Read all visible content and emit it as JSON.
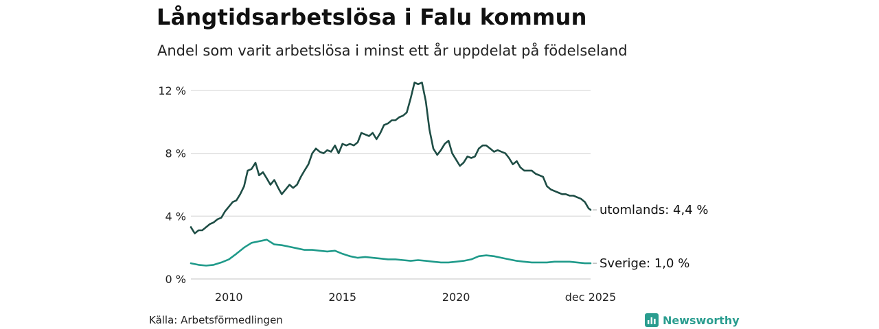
{
  "header": {
    "title": "Långtidsarbetslösa i Falu kommun",
    "subtitle": "Andel som varit arbetslösa i minst ett år uppdelat på födelseland"
  },
  "footer": {
    "source": "Källa: Arbetsförmedlingen",
    "brand": "Newsworthy",
    "brand_icon": "bar-chart-logo-icon",
    "brand_color": "#2a9d8f"
  },
  "chart_data": {
    "type": "line",
    "x_axis": {
      "min": 2008.33,
      "max": 2025.92,
      "ticks": [
        {
          "value": 2010,
          "label": "2010"
        },
        {
          "value": 2015,
          "label": "2015"
        },
        {
          "value": 2020,
          "label": "2020"
        },
        {
          "value": 2025.92,
          "label": "dec 2025"
        }
      ]
    },
    "y_axis": {
      "min": 0,
      "max": 12,
      "ticks": [
        {
          "value": 0,
          "label": "0 %"
        },
        {
          "value": 4,
          "label": "4 %"
        },
        {
          "value": 8,
          "label": "8 %"
        },
        {
          "value": 12,
          "label": "12 %"
        }
      ]
    },
    "grid": true,
    "series": [
      {
        "name": "utomlands",
        "label": "utomlands: 4,4 %",
        "color": "#1e4d45",
        "points": [
          [
            2008.33,
            3.3
          ],
          [
            2008.5,
            2.9
          ],
          [
            2008.67,
            3.1
          ],
          [
            2008.83,
            3.1
          ],
          [
            2009.0,
            3.3
          ],
          [
            2009.17,
            3.5
          ],
          [
            2009.33,
            3.6
          ],
          [
            2009.5,
            3.8
          ],
          [
            2009.67,
            3.9
          ],
          [
            2009.83,
            4.3
          ],
          [
            2010.0,
            4.6
          ],
          [
            2010.17,
            4.9
          ],
          [
            2010.33,
            5.0
          ],
          [
            2010.5,
            5.4
          ],
          [
            2010.67,
            5.9
          ],
          [
            2010.83,
            6.9
          ],
          [
            2011.0,
            7.0
          ],
          [
            2011.17,
            7.4
          ],
          [
            2011.33,
            6.6
          ],
          [
            2011.5,
            6.8
          ],
          [
            2011.67,
            6.4
          ],
          [
            2011.83,
            6.0
          ],
          [
            2012.0,
            6.3
          ],
          [
            2012.17,
            5.8
          ],
          [
            2012.33,
            5.4
          ],
          [
            2012.5,
            5.7
          ],
          [
            2012.67,
            6.0
          ],
          [
            2012.83,
            5.8
          ],
          [
            2013.0,
            6.0
          ],
          [
            2013.17,
            6.5
          ],
          [
            2013.33,
            6.9
          ],
          [
            2013.5,
            7.3
          ],
          [
            2013.67,
            8.0
          ],
          [
            2013.83,
            8.3
          ],
          [
            2014.0,
            8.1
          ],
          [
            2014.17,
            8.0
          ],
          [
            2014.33,
            8.2
          ],
          [
            2014.5,
            8.1
          ],
          [
            2014.67,
            8.5
          ],
          [
            2014.83,
            8.0
          ],
          [
            2015.0,
            8.6
          ],
          [
            2015.17,
            8.5
          ],
          [
            2015.33,
            8.6
          ],
          [
            2015.5,
            8.5
          ],
          [
            2015.67,
            8.7
          ],
          [
            2015.83,
            9.3
          ],
          [
            2016.0,
            9.2
          ],
          [
            2016.17,
            9.1
          ],
          [
            2016.33,
            9.3
          ],
          [
            2016.5,
            8.9
          ],
          [
            2016.67,
            9.3
          ],
          [
            2016.83,
            9.8
          ],
          [
            2017.0,
            9.9
          ],
          [
            2017.17,
            10.1
          ],
          [
            2017.33,
            10.1
          ],
          [
            2017.5,
            10.3
          ],
          [
            2017.67,
            10.4
          ],
          [
            2017.83,
            10.6
          ],
          [
            2018.0,
            11.5
          ],
          [
            2018.17,
            12.5
          ],
          [
            2018.33,
            12.4
          ],
          [
            2018.5,
            12.5
          ],
          [
            2018.67,
            11.3
          ],
          [
            2018.83,
            9.5
          ],
          [
            2019.0,
            8.3
          ],
          [
            2019.17,
            7.9
          ],
          [
            2019.33,
            8.2
          ],
          [
            2019.5,
            8.6
          ],
          [
            2019.67,
            8.8
          ],
          [
            2019.83,
            8.0
          ],
          [
            2020.0,
            7.6
          ],
          [
            2020.17,
            7.2
          ],
          [
            2020.33,
            7.4
          ],
          [
            2020.5,
            7.8
          ],
          [
            2020.67,
            7.7
          ],
          [
            2020.83,
            7.8
          ],
          [
            2021.0,
            8.3
          ],
          [
            2021.17,
            8.5
          ],
          [
            2021.33,
            8.5
          ],
          [
            2021.5,
            8.3
          ],
          [
            2021.67,
            8.1
          ],
          [
            2021.83,
            8.2
          ],
          [
            2022.0,
            8.1
          ],
          [
            2022.17,
            8.0
          ],
          [
            2022.33,
            7.7
          ],
          [
            2022.5,
            7.3
          ],
          [
            2022.67,
            7.5
          ],
          [
            2022.83,
            7.1
          ],
          [
            2023.0,
            6.9
          ],
          [
            2023.17,
            6.9
          ],
          [
            2023.33,
            6.9
          ],
          [
            2023.5,
            6.7
          ],
          [
            2023.67,
            6.6
          ],
          [
            2023.83,
            6.5
          ],
          [
            2024.0,
            5.9
          ],
          [
            2024.17,
            5.7
          ],
          [
            2024.33,
            5.6
          ],
          [
            2024.5,
            5.5
          ],
          [
            2024.67,
            5.4
          ],
          [
            2024.83,
            5.4
          ],
          [
            2025.0,
            5.3
          ],
          [
            2025.17,
            5.3
          ],
          [
            2025.33,
            5.2
          ],
          [
            2025.5,
            5.1
          ],
          [
            2025.67,
            4.9
          ],
          [
            2025.83,
            4.5
          ],
          [
            2025.92,
            4.4
          ]
        ]
      },
      {
        "name": "Sverige",
        "label": "Sverige: 1,0 %",
        "color": "#1f9a8a",
        "points": [
          [
            2008.33,
            1.0
          ],
          [
            2008.67,
            0.9
          ],
          [
            2009.0,
            0.85
          ],
          [
            2009.33,
            0.9
          ],
          [
            2009.67,
            1.05
          ],
          [
            2010.0,
            1.25
          ],
          [
            2010.33,
            1.6
          ],
          [
            2010.67,
            2.0
          ],
          [
            2011.0,
            2.3
          ],
          [
            2011.33,
            2.4
          ],
          [
            2011.67,
            2.5
          ],
          [
            2012.0,
            2.2
          ],
          [
            2012.33,
            2.15
          ],
          [
            2012.67,
            2.05
          ],
          [
            2013.0,
            1.95
          ],
          [
            2013.33,
            1.85
          ],
          [
            2013.67,
            1.85
          ],
          [
            2014.0,
            1.8
          ],
          [
            2014.33,
            1.75
          ],
          [
            2014.67,
            1.8
          ],
          [
            2015.0,
            1.6
          ],
          [
            2015.33,
            1.45
          ],
          [
            2015.67,
            1.35
          ],
          [
            2016.0,
            1.4
          ],
          [
            2016.33,
            1.35
          ],
          [
            2016.67,
            1.3
          ],
          [
            2017.0,
            1.25
          ],
          [
            2017.33,
            1.25
          ],
          [
            2017.67,
            1.2
          ],
          [
            2018.0,
            1.15
          ],
          [
            2018.33,
            1.2
          ],
          [
            2018.67,
            1.15
          ],
          [
            2019.0,
            1.1
          ],
          [
            2019.33,
            1.05
          ],
          [
            2019.67,
            1.05
          ],
          [
            2020.0,
            1.1
          ],
          [
            2020.33,
            1.15
          ],
          [
            2020.67,
            1.25
          ],
          [
            2021.0,
            1.45
          ],
          [
            2021.33,
            1.5
          ],
          [
            2021.67,
            1.45
          ],
          [
            2022.0,
            1.35
          ],
          [
            2022.33,
            1.25
          ],
          [
            2022.67,
            1.15
          ],
          [
            2023.0,
            1.1
          ],
          [
            2023.33,
            1.05
          ],
          [
            2023.67,
            1.05
          ],
          [
            2024.0,
            1.05
          ],
          [
            2024.33,
            1.1
          ],
          [
            2024.67,
            1.1
          ],
          [
            2025.0,
            1.1
          ],
          [
            2025.33,
            1.05
          ],
          [
            2025.67,
            1.0
          ],
          [
            2025.92,
            1.0
          ]
        ]
      }
    ]
  }
}
